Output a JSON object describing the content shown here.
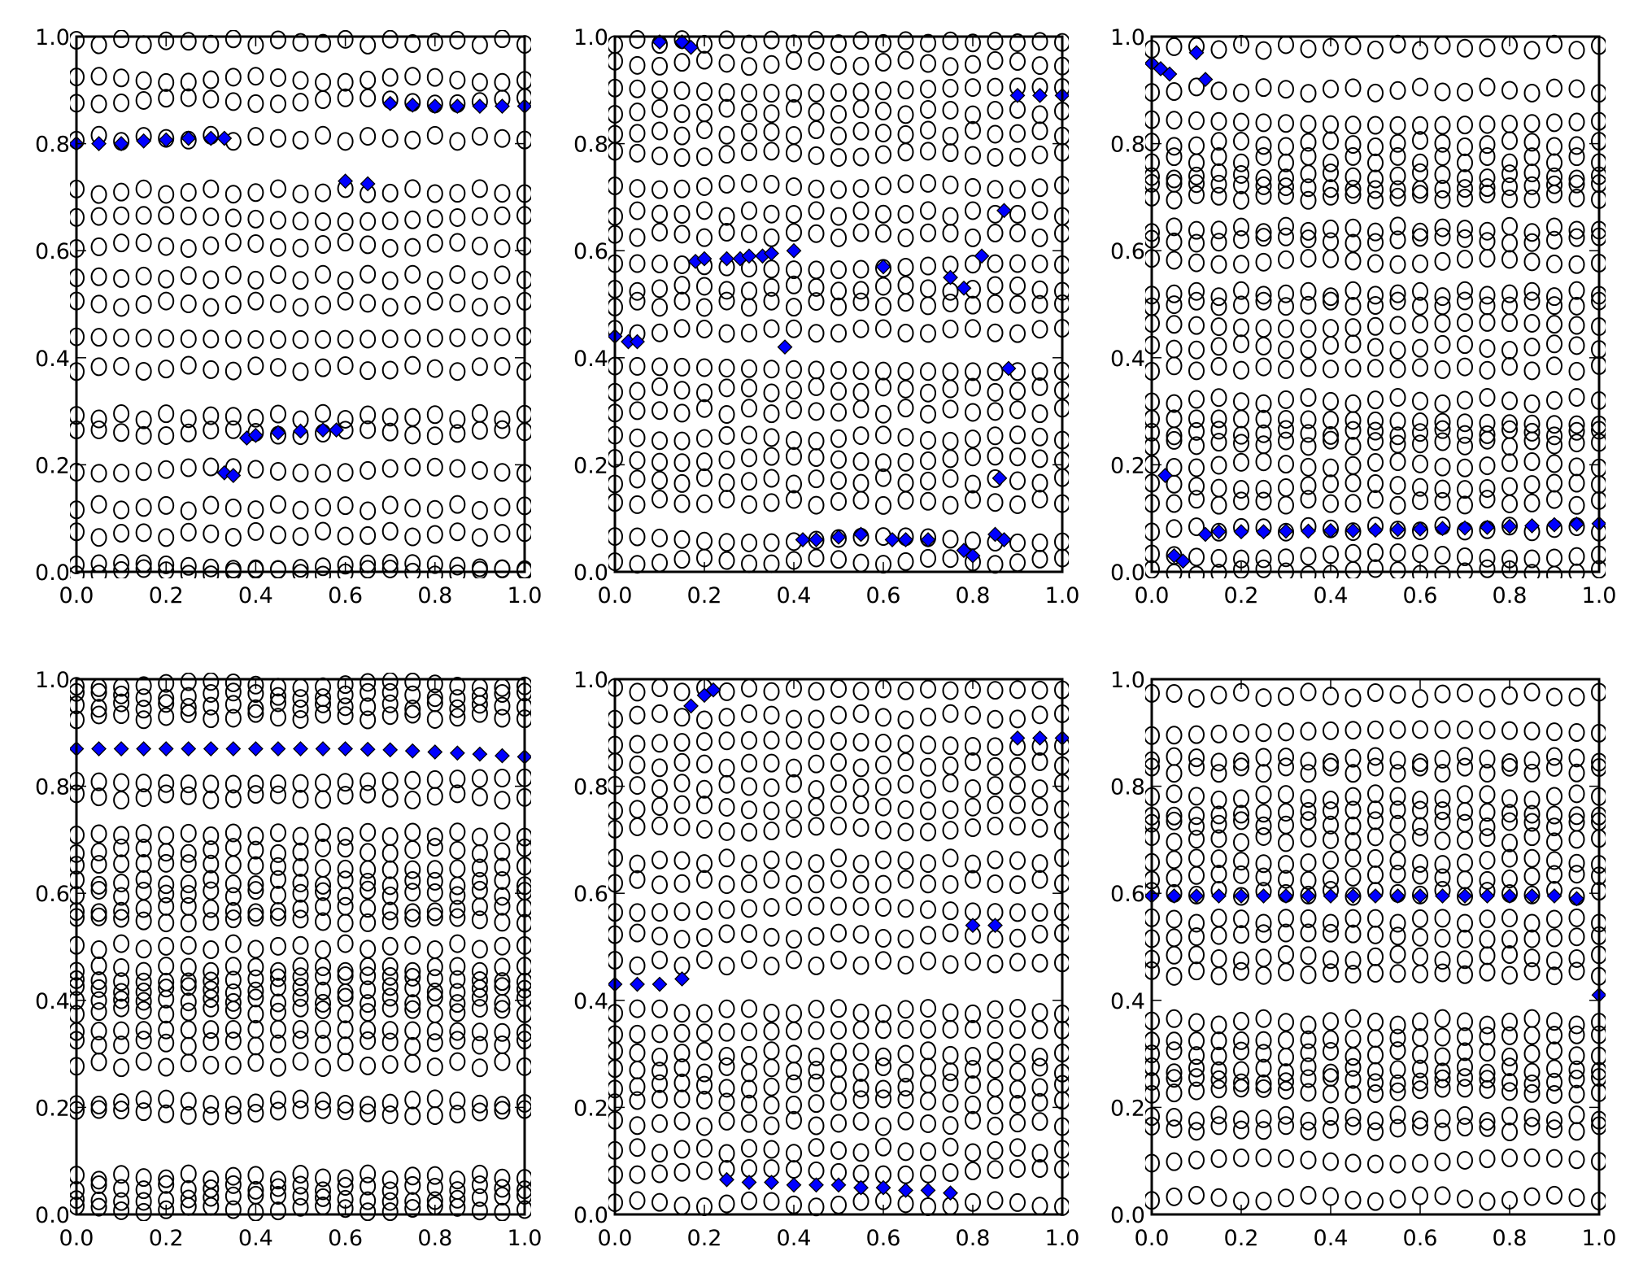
{
  "chart_data": {
    "type": "scatter",
    "layout": "2x3 grid",
    "xticks": [
      "0.0",
      "0.2",
      "0.4",
      "0.6",
      "0.8",
      "1.0"
    ],
    "yticks": [
      "0.0",
      "0.2",
      "0.4",
      "0.6",
      "0.8",
      "1.0"
    ],
    "xlim": [
      0,
      1
    ],
    "ylim": [
      0,
      1
    ],
    "colors": {
      "circle_edge": "#000000",
      "diamond_fill": "#0000ff",
      "diamond_edge": "#000000"
    },
    "x_grid": [
      0,
      0.05,
      0.1,
      0.15,
      0.2,
      0.25,
      0.3,
      0.35,
      0.4,
      0.45,
      0.5,
      0.55,
      0.6,
      0.65,
      0.7,
      0.75,
      0.8,
      0.85,
      0.9,
      0.95,
      1.0
    ],
    "subplots": [
      {
        "circle_levels": [
          0.0,
          0.01,
          0.07,
          0.12,
          0.19,
          0.26,
          0.29,
          0.38,
          0.44,
          0.5,
          0.55,
          0.61,
          0.66,
          0.71,
          0.81,
          0.88,
          0.92,
          0.99
        ],
        "diamonds": [
          [
            0,
            0.8
          ],
          [
            0.05,
            0.8
          ],
          [
            0.1,
            0.8
          ],
          [
            0.15,
            0.805
          ],
          [
            0.2,
            0.807
          ],
          [
            0.25,
            0.81
          ],
          [
            0.3,
            0.81
          ],
          [
            0.33,
            0.81
          ],
          [
            0.33,
            0.185
          ],
          [
            0.35,
            0.18
          ],
          [
            0.38,
            0.25
          ],
          [
            0.4,
            0.255
          ],
          [
            0.45,
            0.26
          ],
          [
            0.5,
            0.263
          ],
          [
            0.55,
            0.265
          ],
          [
            0.58,
            0.265
          ],
          [
            0.6,
            0.73
          ],
          [
            0.65,
            0.725
          ],
          [
            0.7,
            0.875
          ],
          [
            0.75,
            0.872
          ],
          [
            0.8,
            0.87
          ],
          [
            0.85,
            0.87
          ],
          [
            0.9,
            0.87
          ],
          [
            0.95,
            0.87
          ],
          [
            1.0,
            0.87
          ]
        ]
      },
      {
        "circle_levels": [
          0.02,
          0.06,
          0.13,
          0.17,
          0.21,
          0.25,
          0.3,
          0.34,
          0.38,
          0.45,
          0.5,
          0.53,
          0.57,
          0.63,
          0.67,
          0.72,
          0.78,
          0.82,
          0.86,
          0.9,
          0.95,
          0.99
        ],
        "diamonds": [
          [
            0,
            0.44
          ],
          [
            0.03,
            0.43
          ],
          [
            0.05,
            0.43
          ],
          [
            0.1,
            0.99
          ],
          [
            0.15,
            0.99
          ],
          [
            0.17,
            0.98
          ],
          [
            0.18,
            0.58
          ],
          [
            0.2,
            0.585
          ],
          [
            0.25,
            0.585
          ],
          [
            0.28,
            0.585
          ],
          [
            0.3,
            0.59
          ],
          [
            0.33,
            0.59
          ],
          [
            0.35,
            0.595
          ],
          [
            0.4,
            0.6
          ],
          [
            0.38,
            0.42
          ],
          [
            0.42,
            0.06
          ],
          [
            0.45,
            0.06
          ],
          [
            0.5,
            0.065
          ],
          [
            0.55,
            0.07
          ],
          [
            0.6,
            0.57
          ],
          [
            0.62,
            0.06
          ],
          [
            0.65,
            0.06
          ],
          [
            0.7,
            0.06
          ],
          [
            0.75,
            0.55
          ],
          [
            0.78,
            0.04
          ],
          [
            0.8,
            0.03
          ],
          [
            0.78,
            0.53
          ],
          [
            0.82,
            0.59
          ],
          [
            0.85,
            0.07
          ],
          [
            0.87,
            0.06
          ],
          [
            0.86,
            0.175
          ],
          [
            0.88,
            0.38
          ],
          [
            0.87,
            0.675
          ],
          [
            0.9,
            0.89
          ],
          [
            0.95,
            0.89
          ],
          [
            1.0,
            0.89
          ]
        ]
      },
      {
        "circle_levels": [
          0.0,
          0.03,
          0.08,
          0.13,
          0.16,
          0.2,
          0.24,
          0.26,
          0.28,
          0.32,
          0.38,
          0.42,
          0.46,
          0.5,
          0.52,
          0.58,
          0.62,
          0.64,
          0.7,
          0.72,
          0.74,
          0.77,
          0.8,
          0.84,
          0.9,
          0.98
        ],
        "diamonds": [
          [
            0.0,
            0.95
          ],
          [
            0.02,
            0.94
          ],
          [
            0.04,
            0.93
          ],
          [
            0.1,
            0.97
          ],
          [
            0.12,
            0.92
          ],
          [
            0.03,
            0.18
          ],
          [
            0.05,
            0.03
          ],
          [
            0.07,
            0.02
          ],
          [
            0.12,
            0.07
          ],
          [
            0.15,
            0.075
          ],
          [
            0.2,
            0.075
          ],
          [
            0.25,
            0.075
          ],
          [
            0.3,
            0.076
          ],
          [
            0.35,
            0.076
          ],
          [
            0.4,
            0.077
          ],
          [
            0.45,
            0.077
          ],
          [
            0.5,
            0.078
          ],
          [
            0.55,
            0.079
          ],
          [
            0.6,
            0.08
          ],
          [
            0.65,
            0.081
          ],
          [
            0.7,
            0.082
          ],
          [
            0.75,
            0.083
          ],
          [
            0.8,
            0.085
          ],
          [
            0.85,
            0.086
          ],
          [
            0.9,
            0.088
          ],
          [
            0.95,
            0.089
          ],
          [
            1.0,
            0.09
          ]
        ]
      },
      {
        "circle_levels": [
          0.01,
          0.03,
          0.05,
          0.07,
          0.19,
          0.21,
          0.28,
          0.32,
          0.34,
          0.38,
          0.4,
          0.42,
          0.44,
          0.46,
          0.5,
          0.55,
          0.57,
          0.6,
          0.62,
          0.65,
          0.68,
          0.71,
          0.78,
          0.81,
          0.93,
          0.95,
          0.97,
          0.99
        ],
        "diamonds": [
          [
            0,
            0.87
          ],
          [
            0.05,
            0.87
          ],
          [
            0.1,
            0.87
          ],
          [
            0.15,
            0.87
          ],
          [
            0.2,
            0.87
          ],
          [
            0.25,
            0.87
          ],
          [
            0.3,
            0.87
          ],
          [
            0.35,
            0.87
          ],
          [
            0.4,
            0.87
          ],
          [
            0.45,
            0.87
          ],
          [
            0.5,
            0.87
          ],
          [
            0.55,
            0.87
          ],
          [
            0.6,
            0.87
          ],
          [
            0.65,
            0.869
          ],
          [
            0.7,
            0.868
          ],
          [
            0.75,
            0.866
          ],
          [
            0.8,
            0.864
          ],
          [
            0.85,
            0.862
          ],
          [
            0.9,
            0.86
          ],
          [
            0.95,
            0.857
          ],
          [
            1.0,
            0.855
          ]
        ]
      },
      {
        "circle_levels": [
          0.02,
          0.08,
          0.12,
          0.17,
          0.21,
          0.24,
          0.27,
          0.3,
          0.34,
          0.38,
          0.47,
          0.52,
          0.57,
          0.62,
          0.66,
          0.72,
          0.76,
          0.8,
          0.84,
          0.88,
          0.93,
          0.98
        ],
        "diamonds": [
          [
            0,
            0.43
          ],
          [
            0.05,
            0.43
          ],
          [
            0.1,
            0.43
          ],
          [
            0.15,
            0.44
          ],
          [
            0.17,
            0.95
          ],
          [
            0.2,
            0.97
          ],
          [
            0.22,
            0.98
          ],
          [
            0.25,
            0.065
          ],
          [
            0.3,
            0.06
          ],
          [
            0.35,
            0.06
          ],
          [
            0.4,
            0.055
          ],
          [
            0.45,
            0.055
          ],
          [
            0.5,
            0.055
          ],
          [
            0.55,
            0.05
          ],
          [
            0.6,
            0.05
          ],
          [
            0.65,
            0.045
          ],
          [
            0.7,
            0.045
          ],
          [
            0.75,
            0.04
          ],
          [
            0.8,
            0.54
          ],
          [
            0.85,
            0.54
          ],
          [
            0.9,
            0.89
          ],
          [
            0.95,
            0.89
          ],
          [
            1.0,
            0.89
          ]
        ]
      },
      {
        "circle_levels": [
          0.03,
          0.1,
          0.16,
          0.18,
          0.23,
          0.25,
          0.27,
          0.3,
          0.33,
          0.36,
          0.45,
          0.48,
          0.52,
          0.55,
          0.6,
          0.63,
          0.66,
          0.7,
          0.73,
          0.75,
          0.78,
          0.83,
          0.85,
          0.9,
          0.97
        ],
        "diamonds": [
          [
            0,
            0.595
          ],
          [
            0.05,
            0.595
          ],
          [
            0.1,
            0.595
          ],
          [
            0.15,
            0.595
          ],
          [
            0.2,
            0.595
          ],
          [
            0.25,
            0.595
          ],
          [
            0.3,
            0.595
          ],
          [
            0.35,
            0.595
          ],
          [
            0.4,
            0.595
          ],
          [
            0.45,
            0.595
          ],
          [
            0.5,
            0.595
          ],
          [
            0.55,
            0.595
          ],
          [
            0.6,
            0.595
          ],
          [
            0.65,
            0.595
          ],
          [
            0.7,
            0.595
          ],
          [
            0.75,
            0.595
          ],
          [
            0.8,
            0.595
          ],
          [
            0.85,
            0.595
          ],
          [
            0.9,
            0.595
          ],
          [
            0.95,
            0.59
          ],
          [
            1.0,
            0.41
          ]
        ]
      }
    ]
  }
}
